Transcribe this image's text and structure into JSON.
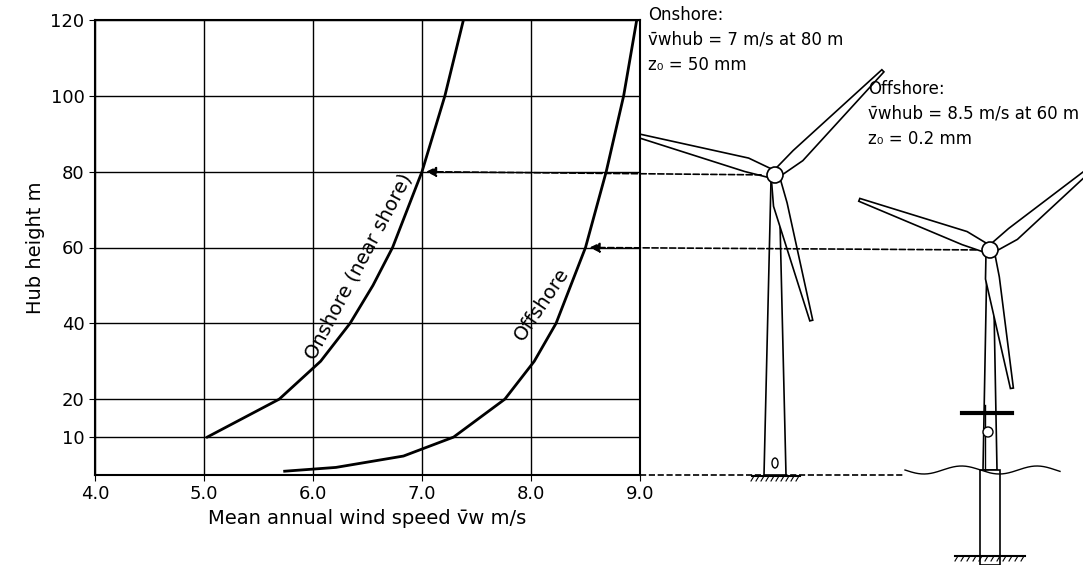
{
  "chart_data": {
    "type": "line",
    "xlabel": "Mean annual wind speed v̄w m/s",
    "ylabel": "Hub height m",
    "xlim": [
      4.0,
      9.0
    ],
    "ylim": [
      0,
      120
    ],
    "xticks": [
      {
        "value": 4,
        "label": "4.0"
      },
      {
        "value": 5,
        "label": "5.0"
      },
      {
        "value": 6,
        "label": "6.0"
      },
      {
        "value": 7,
        "label": "7.0"
      },
      {
        "value": 8,
        "label": "8.0"
      },
      {
        "value": 9,
        "label": "9.0"
      }
    ],
    "yticks": [
      10,
      20,
      40,
      60,
      80,
      100,
      120
    ],
    "grid": true,
    "series": [
      {
        "name": "Onshore (near shore)",
        "color": "#000000",
        "x": [
          5.03,
          5.69,
          6.07,
          6.34,
          6.55,
          6.73,
          7.0,
          7.21,
          7.38
        ],
        "values": [
          10,
          20,
          30,
          40,
          50,
          60,
          80,
          100,
          120
        ]
      },
      {
        "name": "Offshore",
        "color": "#000000",
        "x": [
          5.74,
          6.21,
          6.83,
          7.29,
          7.76,
          8.03,
          8.23,
          8.5,
          8.69,
          8.85,
          8.97
        ],
        "values": [
          1,
          2,
          5,
          10,
          20,
          30,
          40,
          60,
          80,
          100,
          120
        ]
      }
    ],
    "annotations": [
      {
        "lines": [
          "Onshore:",
          "v̄whub = 7 m/s at 80 m",
          "z₀ = 50 mm"
        ],
        "x": 7.0,
        "y": 80
      },
      {
        "lines": [
          "Offshore:",
          "v̄whub = 8.5 m/s at 60 m",
          "z₀ = 0.2 mm"
        ],
        "x": 8.5,
        "y": 60
      }
    ]
  }
}
